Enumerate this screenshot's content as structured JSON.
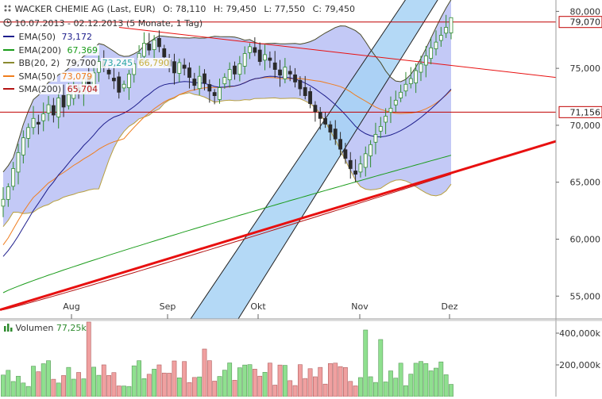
{
  "header": {
    "title": "WACKER CHEMIE AG (Last, EUR)",
    "ohlc": {
      "o_label": "O:",
      "o": "78,110",
      "h_label": "H:",
      "h": "79,450",
      "l_label": "L:",
      "l": "77,550",
      "c_label": "C:",
      "c": "79,450"
    },
    "range": "10.07.2013 - 02.12.2013 (5 Monate, 1 Tag)"
  },
  "legend": [
    {
      "name": "EMA(50)",
      "value": "73,172",
      "color": "#1e1e8c"
    },
    {
      "name": "EMA(200)",
      "value": "67,369",
      "color": "#1a9c1a"
    },
    {
      "name": "BB(20, 2)",
      "value": "79,700",
      "value2": "73,245",
      "value3": "66,790",
      "color": "#8a8a30",
      "color2": "#2aa5a5",
      "color3": "#c8b040"
    },
    {
      "name": "SMA(50)",
      "value": "73,079",
      "color": "#f07d1e"
    },
    {
      "name": "SMA(200)",
      "value": "65,704",
      "color": "#b41414"
    }
  ],
  "colors": {
    "up": "#2e8b2e",
    "down": "#2a2a2a",
    "band_fill": "#b8bff5",
    "channel_fill": "#a7d2f5",
    "trend": "#e81010",
    "hline": "#c00000",
    "vol_up": "#8fe08f",
    "vol_down": "#f0a0a0"
  },
  "chart_data": [
    {
      "type": "candlestick",
      "title": "WACKER CHEMIE AG (Last, EUR)",
      "x_labels": [
        "Aug",
        "Sep",
        "Okt",
        "Nov",
        "Dez"
      ],
      "y_ticks": [
        "55,000",
        "60,000",
        "65,000",
        "70,000",
        "75,000",
        "80,000"
      ],
      "ylim": [
        53,
        81
      ],
      "price_levels": [
        {
          "value": "79,070",
          "y": 79.07
        },
        {
          "value": "71,156",
          "y": 71.156
        }
      ],
      "last_ohlc": {
        "open": 78.11,
        "high": 79.45,
        "low": 77.55,
        "close": 79.45
      },
      "closes": [
        63.5,
        64.6,
        66.2,
        67.6,
        68.9,
        69.8,
        70.6,
        70.1,
        71.0,
        71.8,
        70.9,
        72.4,
        71.6,
        72.7,
        73.3,
        73.0,
        74.1,
        73.6,
        74.6,
        75.6,
        75.1,
        74.5,
        73.9,
        72.9,
        73.6,
        74.5,
        75.4,
        76.3,
        77.2,
        76.6,
        77.5,
        76.9,
        76.0,
        75.2,
        74.6,
        75.5,
        75.0,
        74.2,
        73.5,
        74.3,
        73.7,
        73.0,
        72.6,
        73.3,
        74.2,
        74.9,
        74.5,
        75.4,
        76.3,
        76.9,
        76.4,
        75.6,
        76.2,
        75.7,
        74.9,
        74.4,
        75.1,
        74.5,
        73.8,
        73.2,
        72.6,
        71.9,
        71.2,
        70.6,
        70.1,
        69.4,
        68.8,
        67.9,
        67.1,
        66.2,
        65.7,
        66.6,
        67.5,
        68.3,
        69.2,
        69.9,
        70.8,
        71.5,
        72.2,
        72.9,
        73.6,
        74.1,
        74.8,
        75.4,
        76.1,
        76.8,
        77.3,
        77.9,
        78.6,
        79.45
      ],
      "ema50_end": 73.172,
      "ema200_end": 67.369,
      "bb_end": [
        79.7,
        73.245,
        66.79
      ],
      "sma50_end": 73.079,
      "sma200_end": 65.704
    },
    {
      "type": "bar",
      "title": "Volumen",
      "last_value": "77,25k",
      "y_ticks": [
        "200,000k",
        "400,000k"
      ],
      "ylim": [
        0,
        480
      ]
    }
  ]
}
